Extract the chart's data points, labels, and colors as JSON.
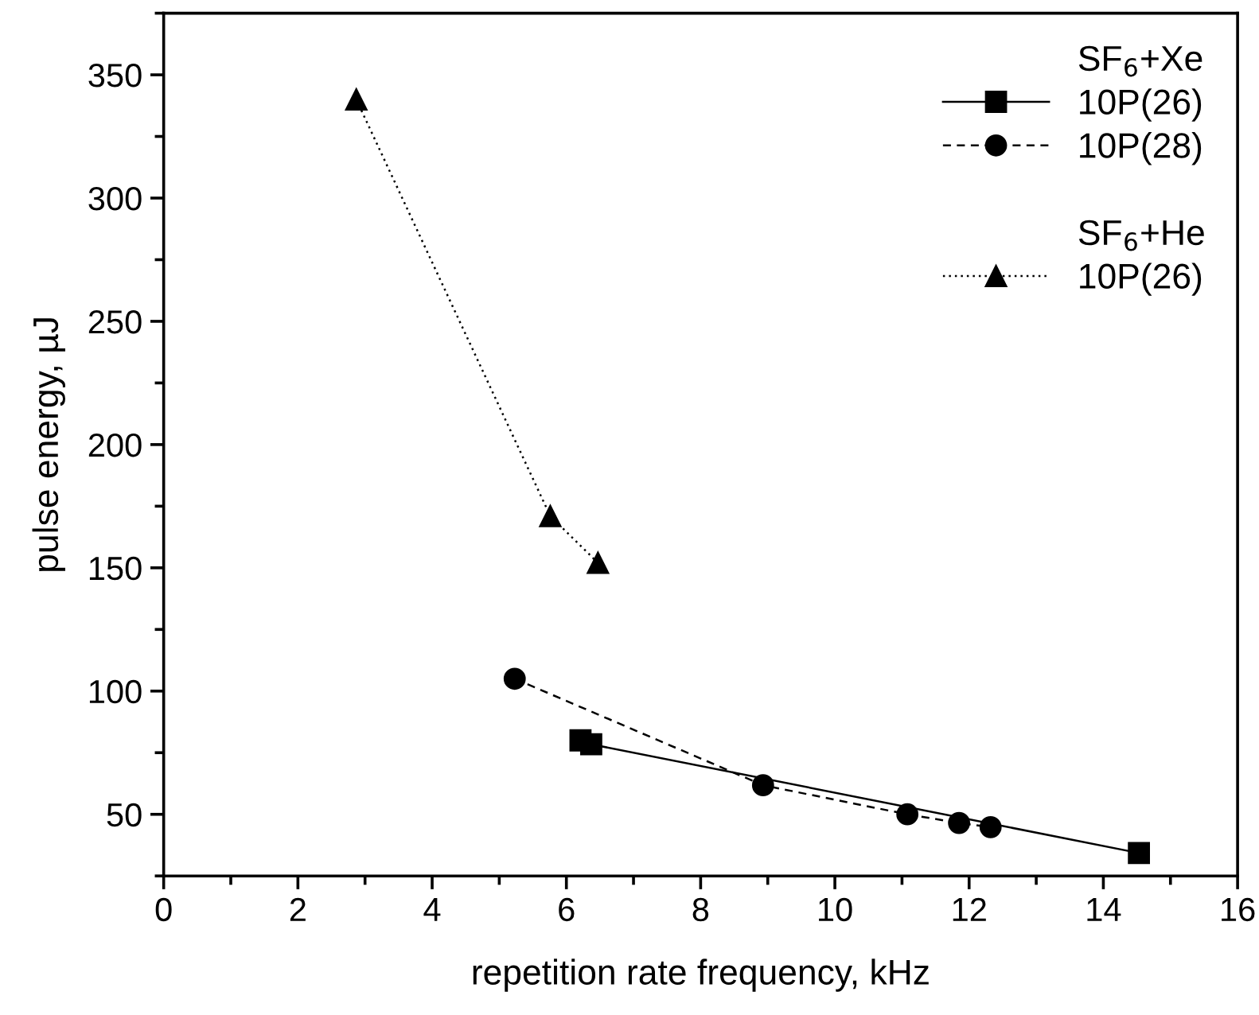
{
  "chart_data": {
    "type": "line",
    "xlabel": "repetition rate frequency, kHz",
    "ylabel": "pulse energy, µJ",
    "xlim": [
      0,
      16
    ],
    "xticks": [
      0,
      2,
      4,
      6,
      8,
      10,
      12,
      14,
      16
    ],
    "ylim": [
      25,
      375
    ],
    "yticks": [
      50,
      100,
      150,
      200,
      250,
      300,
      350
    ],
    "legend": "top right",
    "annotations": [
      "SF$_{6}$+Xe",
      "SF$_{6}$+He"
    ],
    "series": [
      {
        "name": "10P(26)",
        "color": "#000000",
        "marker": "square",
        "line_style": "solid",
        "x": [
          6.21,
          6.37,
          14.53
        ],
        "values": [
          80,
          78.4,
          34.3
        ]
      },
      {
        "name": "10P(28)",
        "color": "#000000",
        "marker": "circle",
        "line_style": "dashed",
        "x": [
          5.23,
          8.93,
          11.08,
          11.85,
          12.32
        ],
        "values": [
          105,
          61.8,
          50,
          46.5,
          44.8
        ]
      },
      {
        "name": "10P(26)",
        "color": "#000000",
        "marker": "triangle",
        "line_style": "dotted",
        "x": [
          2.87,
          5.76,
          6.47
        ],
        "values": [
          340,
          171,
          152
        ]
      }
    ]
  }
}
